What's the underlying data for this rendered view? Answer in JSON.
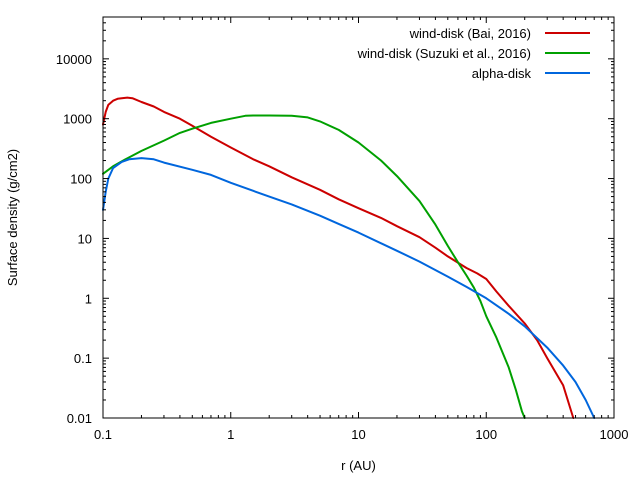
{
  "chart_data": {
    "type": "line",
    "title": "",
    "xlabel": "r (AU)",
    "ylabel": "Surface density (g/cm2)",
    "xscale": "log",
    "yscale": "log",
    "xlim": [
      0.1,
      1000
    ],
    "ylim": [
      0.01,
      50000
    ],
    "x_ticks": [
      {
        "value": 0.1,
        "label": "0.1"
      },
      {
        "value": 1,
        "label": "1"
      },
      {
        "value": 10,
        "label": "10"
      },
      {
        "value": 100,
        "label": "100"
      },
      {
        "value": 1000,
        "label": "1000"
      }
    ],
    "y_ticks": [
      {
        "value": 0.01,
        "label": "0.01"
      },
      {
        "value": 0.1,
        "label": "0.1"
      },
      {
        "value": 1,
        "label": "1"
      },
      {
        "value": 10,
        "label": "10"
      },
      {
        "value": 100,
        "label": "100"
      },
      {
        "value": 1000,
        "label": "1000"
      },
      {
        "value": 10000,
        "label": "10000"
      }
    ],
    "legend_position": "top-right",
    "series": [
      {
        "name": "wind-disk (Bai, 2016)",
        "color": "#cc0000",
        "x": [
          0.1,
          0.105,
          0.11,
          0.12,
          0.13,
          0.14,
          0.155,
          0.17,
          0.2,
          0.25,
          0.3,
          0.4,
          0.5,
          0.7,
          1,
          1.5,
          2,
          3,
          5,
          7,
          10,
          15,
          20,
          30,
          40,
          50,
          70,
          85,
          100,
          120,
          150,
          200,
          250,
          300,
          400,
          480
        ],
        "y": [
          800,
          1300,
          1700,
          2000,
          2150,
          2200,
          2250,
          2200,
          1900,
          1600,
          1300,
          1000,
          760,
          500,
          330,
          210,
          160,
          105,
          65,
          45,
          32,
          22,
          16,
          10.5,
          7,
          5,
          3.2,
          2.6,
          2.1,
          1.3,
          0.75,
          0.38,
          0.2,
          0.1,
          0.035,
          0.01
        ]
      },
      {
        "name": "wind-disk (Suzuki et al., 2016)",
        "color": "#00a000",
        "x": [
          0.1,
          0.12,
          0.15,
          0.2,
          0.3,
          0.4,
          0.5,
          0.7,
          1,
          1.3,
          1.5,
          2,
          3,
          4,
          5,
          7,
          10,
          15,
          20,
          30,
          40,
          50,
          60,
          70,
          80,
          90,
          100,
          120,
          150,
          170,
          190,
          200
        ],
        "y": [
          120,
          160,
          210,
          290,
          430,
          580,
          680,
          850,
          1000,
          1120,
          1130,
          1130,
          1120,
          1050,
          900,
          650,
          400,
          200,
          110,
          42,
          17,
          7.5,
          4,
          2.4,
          1.5,
          0.9,
          0.5,
          0.22,
          0.07,
          0.03,
          0.013,
          0.01
        ]
      },
      {
        "name": "alpha-disk",
        "color": "#0066dd",
        "x": [
          0.1,
          0.105,
          0.11,
          0.12,
          0.14,
          0.16,
          0.2,
          0.25,
          0.3,
          0.5,
          0.7,
          1,
          2,
          3,
          5,
          7,
          10,
          20,
          30,
          50,
          70,
          100,
          150,
          200,
          300,
          400,
          500,
          600,
          700
        ],
        "y": [
          30,
          60,
          100,
          150,
          190,
          210,
          220,
          210,
          185,
          140,
          115,
          85,
          50,
          37,
          24,
          17.5,
          12.5,
          6.2,
          4.1,
          2.3,
          1.55,
          1.0,
          0.55,
          0.34,
          0.15,
          0.075,
          0.04,
          0.02,
          0.01
        ]
      }
    ]
  }
}
